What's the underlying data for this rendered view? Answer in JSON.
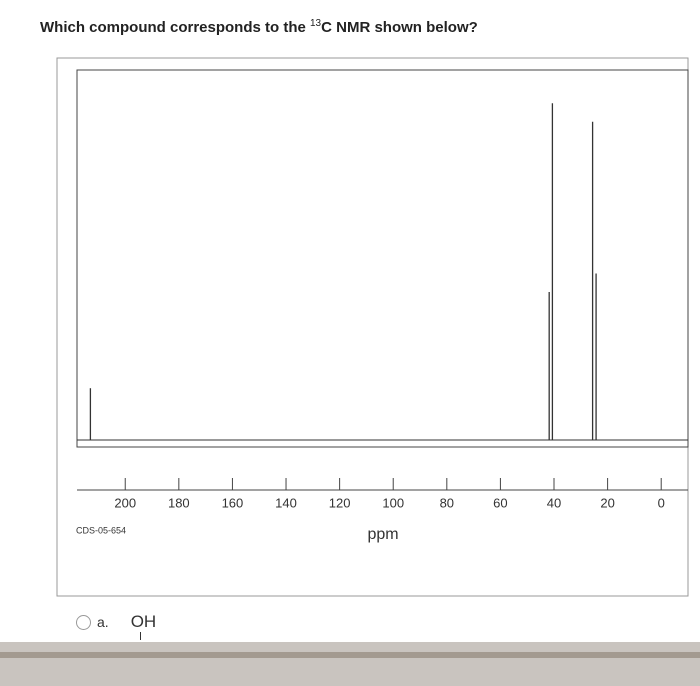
{
  "question": {
    "prefix": "Which compound corresponds to the ",
    "superscript": "13",
    "suffix": "C NMR shown below?"
  },
  "chart_data": {
    "type": "spectrum",
    "x_label": "ppm",
    "code": "CDS-05-654",
    "xlim": [
      218,
      -10
    ],
    "xticks": [
      200,
      180,
      160,
      140,
      120,
      100,
      80,
      60,
      40,
      20,
      0
    ],
    "ylim": [
      0,
      100
    ],
    "x": [
      213,
      41.8,
      40.6,
      25.6,
      24.3
    ],
    "values": [
      14,
      40,
      91,
      86,
      45
    ],
    "color": "#333333"
  },
  "options": [
    {
      "letter": "a.",
      "label": "OH"
    }
  ]
}
